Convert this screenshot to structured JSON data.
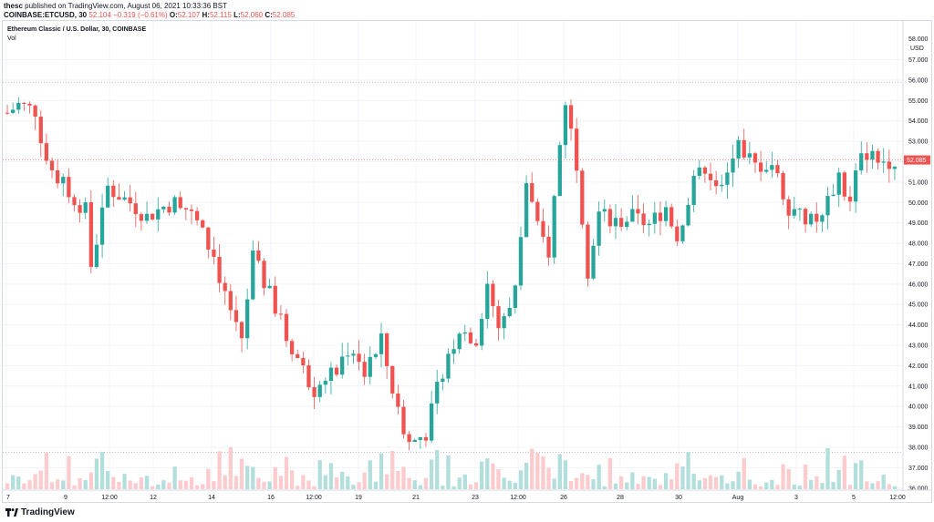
{
  "header": {
    "publisher": "thesc",
    "published_text": "published on TradingView.com, August 06, 2021 10:33:36 BST",
    "symbol_line": "COINBASE:ETCUSD, 30",
    "ohlc": {
      "price": "52.104",
      "change": "−0.319 (−0.61%)",
      "open_label": "O:",
      "open": "52.107",
      "high_label": "H:",
      "high": "52.115",
      "low_label": "L:",
      "low": "52.060",
      "close_label": "C:",
      "close": "52.085"
    }
  },
  "legend": {
    "title": "Ethereum Classic / U.S. Dollar, 30, COINBASE",
    "vol_label": "Vol"
  },
  "footer": {
    "brand": "TradingView"
  },
  "colors": {
    "up": "#26a69a",
    "down": "#ef5350",
    "up_vol": "#b2dfdb",
    "down_vol": "#fccbcd",
    "grid": "#f0f3fa",
    "axis": "#d6dae3",
    "last_price": "#ef5350"
  },
  "chart_data": {
    "type": "candlestick",
    "title": "Ethereum Classic / U.S. Dollar, 30, COINBASE",
    "ylabel": "USD",
    "ylim": [
      35.9,
      58.9
    ],
    "y_ticks": [
      "57.000",
      "56.000",
      "55.000",
      "54.000",
      "53.000",
      "52.000",
      "51.000",
      "50.000",
      "49.000",
      "48.000",
      "47.000",
      "46.000",
      "45.000",
      "44.000",
      "43.000",
      "42.000",
      "41.000",
      "40.000",
      "39.000",
      "38.000",
      "37.000",
      "36.000"
    ],
    "y_top_label": "58.000",
    "x_ticks": [
      "7",
      "9",
      "12:00",
      "12",
      "14",
      "16",
      "12:00",
      "19",
      "21",
      "23",
      "12:00",
      "26",
      "28",
      "30",
      "Aug",
      "3",
      "5",
      "12:00"
    ],
    "last_price": "52.085",
    "last_price_value": 52.085,
    "reference_lines": [
      55.9,
      37.75
    ],
    "anchors": [
      [
        0,
        54.4
      ],
      [
        2,
        54.8
      ],
      [
        5,
        54.5
      ],
      [
        7,
        52.0
      ],
      [
        11,
        50.5
      ],
      [
        14,
        49.6
      ],
      [
        15,
        46.9
      ],
      [
        18,
        50.7
      ],
      [
        22,
        50.0
      ],
      [
        25,
        49.3
      ],
      [
        28,
        49.8
      ],
      [
        31,
        50.1
      ],
      [
        34,
        49.0
      ],
      [
        37,
        47.3
      ],
      [
        39,
        45.5
      ],
      [
        42,
        43.4
      ],
      [
        44,
        47.3
      ],
      [
        47,
        45.5
      ],
      [
        50,
        43.5
      ],
      [
        53,
        41.8
      ],
      [
        55,
        40.8
      ],
      [
        58,
        41.5
      ],
      [
        61,
        42.8
      ],
      [
        64,
        41.6
      ],
      [
        67,
        43.2
      ],
      [
        70,
        39.7
      ],
      [
        72,
        38.2
      ],
      [
        75,
        38.7
      ],
      [
        78,
        41.8
      ],
      [
        81,
        43.8
      ],
      [
        84,
        43.3
      ],
      [
        86,
        46.0
      ],
      [
        88,
        43.9
      ],
      [
        91,
        45.7
      ],
      [
        93,
        51.0
      ],
      [
        95,
        48.7
      ],
      [
        97,
        47.6
      ],
      [
        99,
        52.8
      ],
      [
        100,
        55.0
      ],
      [
        102,
        52.0
      ],
      [
        104,
        46.7
      ],
      [
        106,
        49.5
      ],
      [
        109,
        49.0
      ],
      [
        112,
        49.3
      ],
      [
        115,
        48.9
      ],
      [
        118,
        49.8
      ],
      [
        120,
        48.3
      ],
      [
        123,
        50.9
      ],
      [
        125,
        51.8
      ],
      [
        128,
        50.5
      ],
      [
        131,
        52.8
      ],
      [
        134,
        51.8
      ],
      [
        137,
        51.9
      ],
      [
        140,
        49.8
      ],
      [
        143,
        49.0
      ],
      [
        146,
        49.2
      ],
      [
        149,
        51.4
      ],
      [
        151,
        49.8
      ],
      [
        153,
        52.7
      ],
      [
        156,
        52.0
      ],
      [
        159,
        52.1
      ]
    ],
    "candle_count": 160
  }
}
